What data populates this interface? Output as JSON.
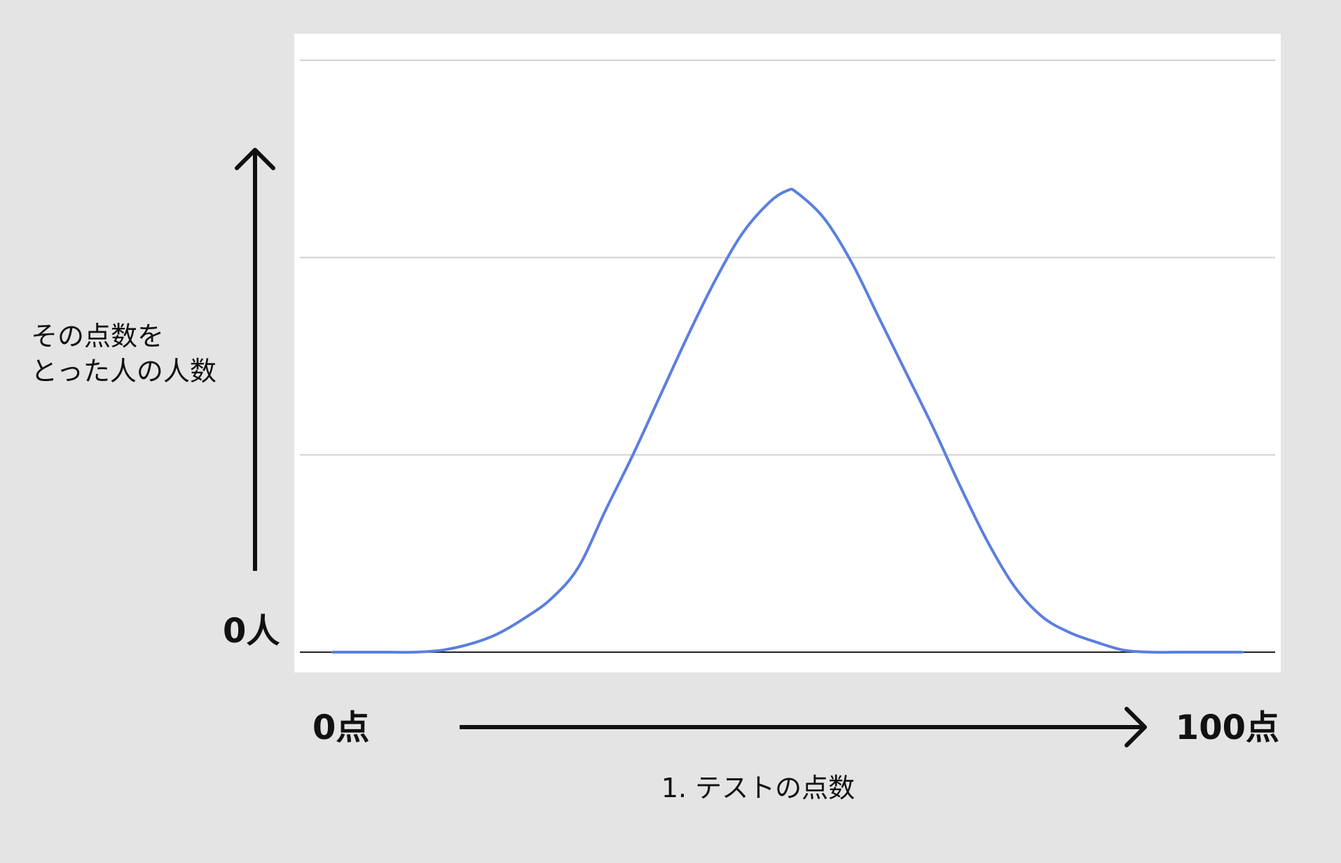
{
  "chart_data": {
    "type": "line",
    "title": "",
    "xlabel": "1. テストの点数",
    "ylabel_lines": [
      "その点数を",
      "とった人の人数"
    ],
    "x_start_label": "0点",
    "x_end_label": "100点",
    "y_zero_label": "0人",
    "xlim": [
      0,
      100
    ],
    "ylim": [
      0,
      3
    ],
    "grid": true,
    "gridlines_y": [
      1,
      2,
      3
    ],
    "series": [
      {
        "color": "#5b7fdf",
        "x": [
          0,
          3,
          6,
          9,
          12,
          15,
          18,
          21,
          24,
          27,
          30,
          33,
          36,
          39,
          42,
          45,
          48,
          50,
          51,
          54,
          57,
          60,
          63,
          66,
          69,
          72,
          75,
          78,
          81,
          84,
          87,
          90,
          93,
          96,
          100
        ],
        "y": [
          0.0,
          0.0,
          0.0,
          0.0,
          0.01,
          0.04,
          0.09,
          0.17,
          0.27,
          0.43,
          0.72,
          1.0,
          1.3,
          1.6,
          1.88,
          2.12,
          2.28,
          2.34,
          2.33,
          2.2,
          1.98,
          1.7,
          1.42,
          1.14,
          0.84,
          0.56,
          0.33,
          0.18,
          0.1,
          0.05,
          0.01,
          0.0,
          0.0,
          0.0,
          0.0
        ]
      }
    ]
  },
  "colors": {
    "background": "#e4e4e4",
    "plot_background": "#ffffff",
    "gridline": "#d0d0d0",
    "baseline": "#222222",
    "arrow": "#111111",
    "series": "#5b7fdf"
  }
}
